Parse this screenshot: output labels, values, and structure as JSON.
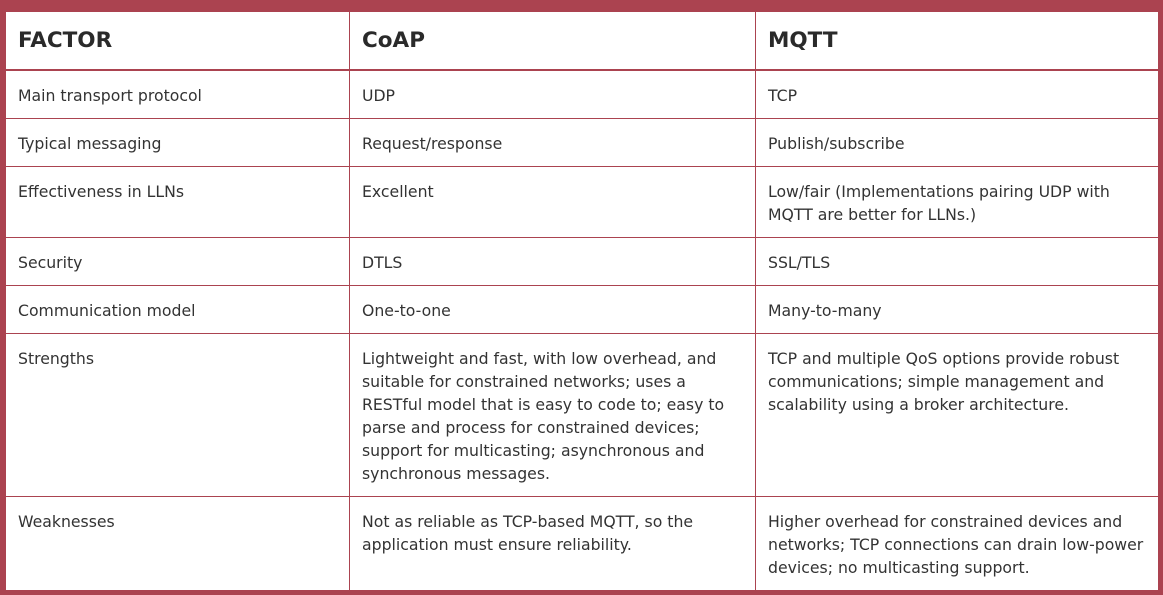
{
  "table": {
    "headers": [
      "FACTOR",
      "CoAP",
      "MQTT"
    ],
    "rows": [
      {
        "factor": "Main transport protocol",
        "coap": "UDP",
        "mqtt": "TCP"
      },
      {
        "factor": "Typical messaging",
        "coap": "Request/response",
        "mqtt": "Publish/subscribe"
      },
      {
        "factor": "Effectiveness in LLNs",
        "coap": "Excellent",
        "mqtt": "Low/fair (Implementations pairing UDP with MQTT are better for LLNs.)"
      },
      {
        "factor": "Security",
        "coap": "DTLS",
        "mqtt": "SSL/TLS"
      },
      {
        "factor": "Communication model",
        "coap": "One-to-one",
        "mqtt": "Many-to-many"
      },
      {
        "factor": "Strengths",
        "coap": "Lightweight and fast, with low overhead, and suitable for constrained networks; uses a RESTful model that is easy to code to; easy to parse and process for constrained devices; support for multicasting; asynchronous and synchronous messages.",
        "mqtt": "TCP and multiple QoS options provide robust communications; simple management and scalability using a broker architecture."
      },
      {
        "factor": "Weaknesses",
        "coap": "Not as reliable as TCP-based MQTT, so the application must ensure reliability.",
        "mqtt": "Higher overhead for constrained devices and networks; TCP connections can drain low-power devices; no multicasting support."
      }
    ]
  },
  "colors": {
    "border": "#ab4350",
    "text": "#333333",
    "background": "#ffffff"
  }
}
